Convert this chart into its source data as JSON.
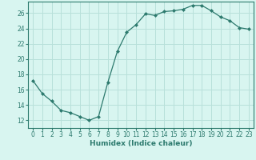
{
  "x": [
    0,
    1,
    2,
    3,
    4,
    5,
    6,
    7,
    8,
    9,
    10,
    11,
    12,
    13,
    14,
    15,
    16,
    17,
    18,
    19,
    20,
    21,
    22,
    23
  ],
  "y": [
    17.2,
    15.5,
    14.5,
    13.3,
    13.0,
    12.5,
    12.0,
    12.5,
    17.0,
    21.0,
    23.5,
    24.5,
    25.9,
    25.7,
    26.2,
    26.3,
    26.5,
    27.0,
    27.0,
    26.3,
    25.5,
    25.0,
    24.1,
    23.9
  ],
  "xlabel": "Humidex (Indice chaleur)",
  "xlim": [
    -0.5,
    23.5
  ],
  "ylim": [
    11,
    27.5
  ],
  "yticks": [
    12,
    14,
    16,
    18,
    20,
    22,
    24,
    26
  ],
  "xticks": [
    0,
    1,
    2,
    3,
    4,
    5,
    6,
    7,
    8,
    9,
    10,
    11,
    12,
    13,
    14,
    15,
    16,
    17,
    18,
    19,
    20,
    21,
    22,
    23
  ],
  "line_color": "#2d7a6e",
  "marker": "D",
  "marker_size": 2.0,
  "bg_color": "#d8f5f0",
  "grid_color": "#b8e0da",
  "tick_fontsize": 5.5,
  "xlabel_fontsize": 6.5
}
